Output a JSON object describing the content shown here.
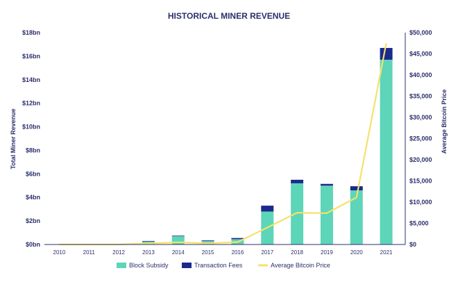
{
  "chart_data": {
    "type": "bar",
    "title": "HISTORICAL MINER REVENUE",
    "ylabel": "Total Miner Revenue",
    "y2label": "Average Bitcoin Price",
    "categories": [
      "2010",
      "2011",
      "2012",
      "2013",
      "2014",
      "2015",
      "2016",
      "2017",
      "2018",
      "2019",
      "2020",
      "2021"
    ],
    "ylim": [
      0,
      18
    ],
    "yticks": [
      0,
      2,
      4,
      6,
      8,
      10,
      12,
      14,
      16,
      18
    ],
    "ytick_labels": [
      "$0bn",
      "$2bn",
      "$4bn",
      "$6bn",
      "$8bn",
      "$10bn",
      "$12bn",
      "$14bn",
      "$16bn",
      "$18bn"
    ],
    "y2lim": [
      0,
      50000
    ],
    "y2ticks": [
      0,
      5000,
      10000,
      15000,
      20000,
      25000,
      30000,
      35000,
      40000,
      45000,
      50000
    ],
    "y2tick_labels": [
      "$0",
      "$5,000",
      "$10,000",
      "$15,000",
      "$20,000",
      "$25,000",
      "$30,000",
      "$35,000",
      "$40,000",
      "$45,000",
      "$50,000"
    ],
    "stacked": true,
    "series": [
      {
        "name": "Block Subsidy",
        "kind": "bar",
        "color": "#5dd5b8",
        "values": [
          0,
          0,
          0,
          0.25,
          0.7,
          0.3,
          0.45,
          2.8,
          5.2,
          5.0,
          4.6,
          15.7
        ]
      },
      {
        "name": "Transaction Fees",
        "kind": "bar",
        "color": "#1b2a8c",
        "values": [
          0,
          0,
          0,
          0.05,
          0.05,
          0.05,
          0.1,
          0.5,
          0.3,
          0.15,
          0.35,
          1.0
        ]
      },
      {
        "name": "Average Bitcoin Price",
        "kind": "line",
        "axis": "right",
        "color": "#f5e16b",
        "values": [
          0,
          0,
          0,
          250,
          530,
          270,
          570,
          4000,
          7500,
          7400,
          11100,
          47500
        ]
      }
    ],
    "legend_position": "bottom",
    "grid": false
  }
}
